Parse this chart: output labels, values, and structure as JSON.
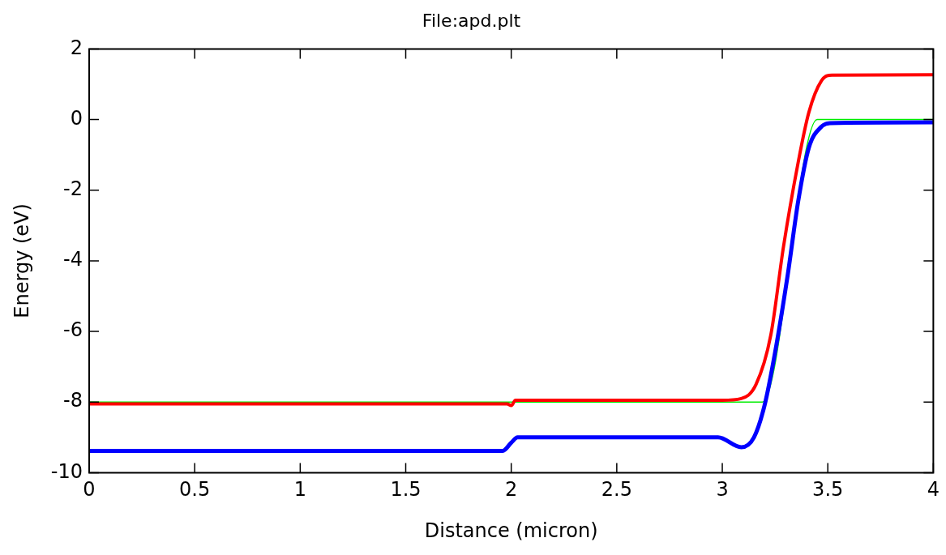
{
  "chart_data": {
    "type": "line",
    "title": "File:apd.plt",
    "xlabel": "Distance (micron)",
    "ylabel": "Energy (eV)",
    "xlim": [
      0,
      4
    ],
    "ylim": [
      -10,
      2
    ],
    "xticks": [
      0,
      0.5,
      1,
      1.5,
      2,
      2.5,
      3,
      3.5,
      4
    ],
    "yticks": [
      -10,
      -8,
      -6,
      -4,
      -2,
      0,
      2
    ],
    "grid": false,
    "legend": false,
    "marker": "none",
    "line_style": "solid",
    "series": [
      {
        "color": "#00ee00",
        "x": [
          0,
          3.19,
          3.45,
          4
        ],
        "values": [
          -8,
          -8,
          0,
          0
        ]
      },
      {
        "color": "#ff0000",
        "x": [
          0,
          1.98,
          2.0,
          2.02,
          3.0,
          3.09,
          3.16,
          3.23,
          3.29,
          3.36,
          3.41,
          3.47,
          3.52,
          4
        ],
        "values": [
          -8.05,
          -8.05,
          -8.1,
          -7.95,
          -7.95,
          -7.9,
          -7.5,
          -6.1,
          -3.6,
          -1.2,
          0.2,
          1.1,
          1.26,
          1.27
        ]
      },
      {
        "color": "#0000ff",
        "x": [
          0,
          1.96,
          2.0,
          2.03,
          2.98,
          3.09,
          3.15,
          3.2,
          3.25,
          3.31,
          3.36,
          3.41,
          3.47,
          3.51,
          4
        ],
        "values": [
          -9.38,
          -9.38,
          -9.15,
          -9.0,
          -9.0,
          -9.28,
          -9.0,
          -8.1,
          -6.6,
          -4.4,
          -2.3,
          -0.8,
          -0.2,
          -0.1,
          -0.08
        ]
      }
    ]
  }
}
